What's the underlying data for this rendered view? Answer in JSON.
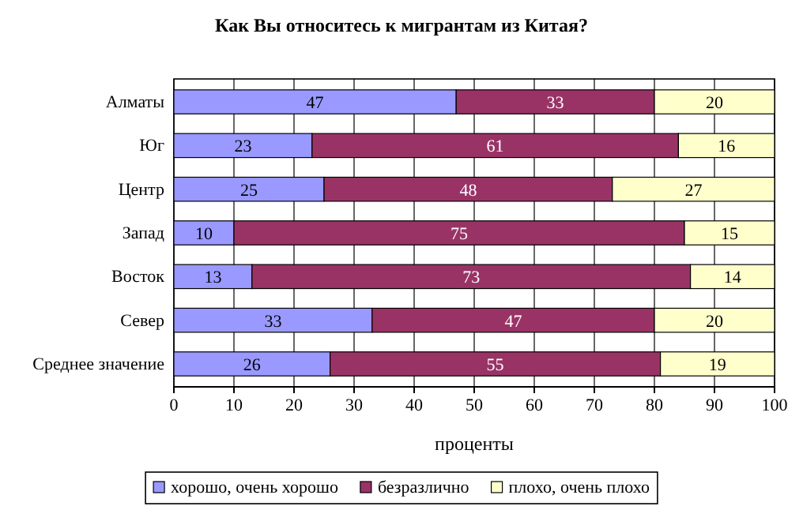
{
  "chart_data": {
    "type": "bar",
    "orientation": "horizontal",
    "stacked": true,
    "title": "Как Вы относитесь к мигрантам из Китая?",
    "xlabel": "проценты",
    "categories": [
      "Алматы",
      "Юг",
      "Центр",
      "Запад",
      "Восток",
      "Север",
      "Среднее значение"
    ],
    "series": [
      {
        "name": "хорошо, очень хорошо",
        "color": "#9999ff",
        "values": [
          47,
          23,
          25,
          10,
          13,
          33,
          26
        ]
      },
      {
        "name": "безразлично",
        "color": "#993366",
        "values": [
          33,
          61,
          48,
          75,
          73,
          47,
          55
        ]
      },
      {
        "name": "плохо, очень плохо",
        "color": "#ffffcc",
        "values": [
          20,
          16,
          27,
          15,
          14,
          20,
          19
        ]
      }
    ],
    "xlim": [
      0,
      100
    ],
    "xticks": [
      0,
      10,
      20,
      30,
      40,
      50,
      60,
      70,
      80,
      90,
      100
    ],
    "grid": "x",
    "legend": "bottom",
    "data_labels": true
  }
}
